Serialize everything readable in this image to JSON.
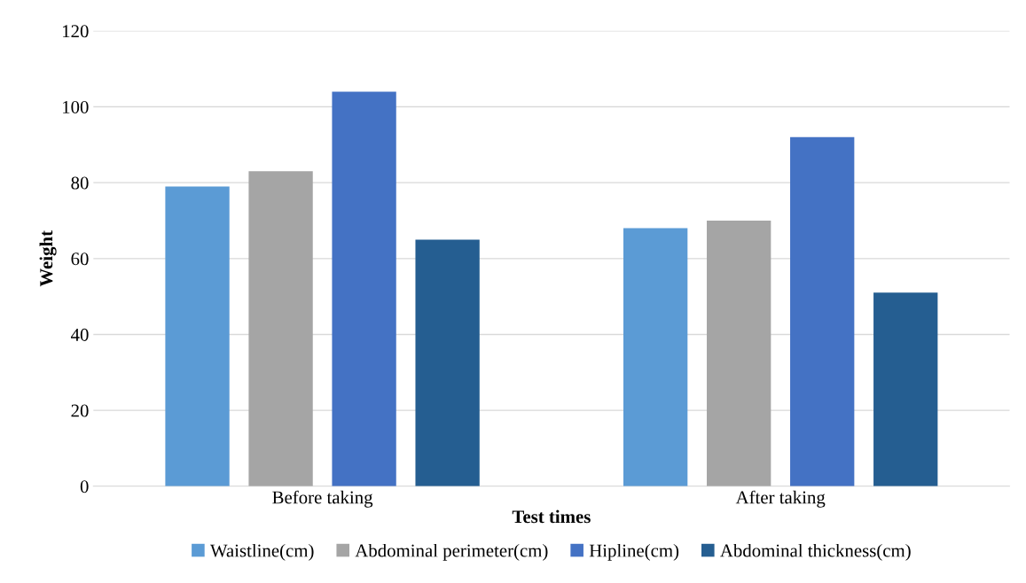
{
  "chart_data": {
    "type": "bar",
    "xlabel": "Test times",
    "ylabel": "Weight",
    "categories": [
      "Before taking",
      "After taking"
    ],
    "series": [
      {
        "name": "Waistline(cm)",
        "color": "#5b9bd5",
        "values": [
          79,
          68
        ]
      },
      {
        "name": "Abdominal perimeter(cm)",
        "color": "#a5a5a5",
        "values": [
          83,
          70
        ]
      },
      {
        "name": "Hipline(cm)",
        "color": "#4472c4",
        "values": [
          104,
          92
        ]
      },
      {
        "name": "Abdominal thickness(cm)",
        "color": "#255e91",
        "values": [
          65,
          51
        ]
      }
    ],
    "ylim": [
      0,
      120
    ],
    "yticks": [
      0,
      20,
      40,
      60,
      80,
      100,
      120
    ],
    "grid": "y",
    "legend": "bottom"
  }
}
